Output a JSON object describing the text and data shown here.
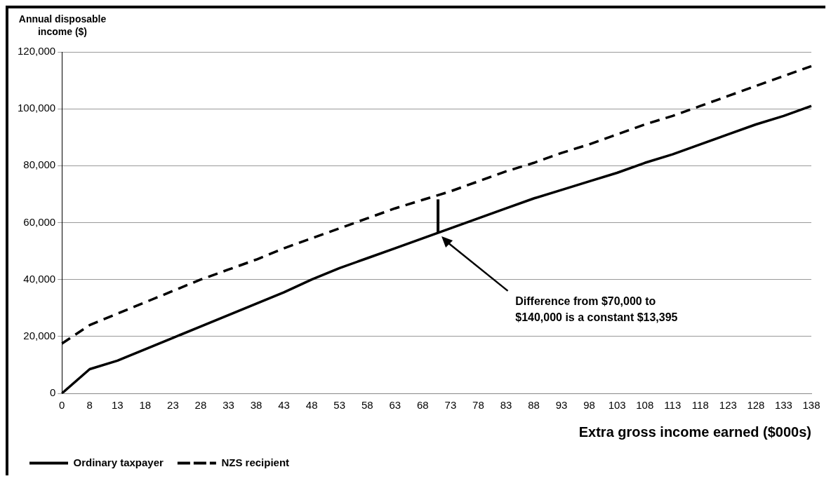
{
  "chart_data": {
    "type": "line",
    "xlabel": "Extra gross income earned ($000s)",
    "ylabel": "Annual disposable income ($)",
    "categories": [
      "0",
      "8",
      "13",
      "18",
      "23",
      "28",
      "33",
      "38",
      "43",
      "48",
      "53",
      "58",
      "63",
      "68",
      "73",
      "78",
      "83",
      "88",
      "93",
      "98",
      "103",
      "108",
      "113",
      "118",
      "123",
      "128",
      "133",
      "138"
    ],
    "series": [
      {
        "name": "Ordinary taxpayer",
        "color": "#000000",
        "line_style": "solid",
        "values": [
          0,
          8500,
          11500,
          15500,
          19500,
          23500,
          27500,
          31500,
          35500,
          40000,
          44000,
          47500,
          51000,
          54500,
          58000,
          61500,
          65000,
          68500,
          71500,
          74500,
          77500,
          81000,
          84000,
          87500,
          91000,
          94500,
          97500,
          101000
        ]
      },
      {
        "name": "NZS recipient",
        "color": "#000000",
        "line_style": "dashed",
        "values": [
          17500,
          24000,
          28000,
          32000,
          36000,
          40000,
          43500,
          47000,
          51000,
          54500,
          58000,
          61500,
          65000,
          68000,
          71000,
          74500,
          78000,
          81000,
          84500,
          87500,
          91000,
          94500,
          97500,
          101000,
          104500,
          108000,
          111500,
          115000
        ]
      }
    ],
    "ylim": [
      0,
      120000
    ],
    "yticks": [
      {
        "value": 0,
        "label": "0"
      },
      {
        "value": 20000,
        "label": "20,000"
      },
      {
        "value": 40000,
        "label": "40,000"
      },
      {
        "value": 60000,
        "label": "60,000"
      },
      {
        "value": 80000,
        "label": "80,000"
      },
      {
        "value": 100000,
        "label": "100,000"
      },
      {
        "value": 120000,
        "label": "120,000"
      }
    ],
    "grid": "y",
    "legend": "bottom left",
    "marker": "none",
    "annotations": [
      "Difference from $70,000 to\n$140,000 is a constant $13,395"
    ]
  }
}
